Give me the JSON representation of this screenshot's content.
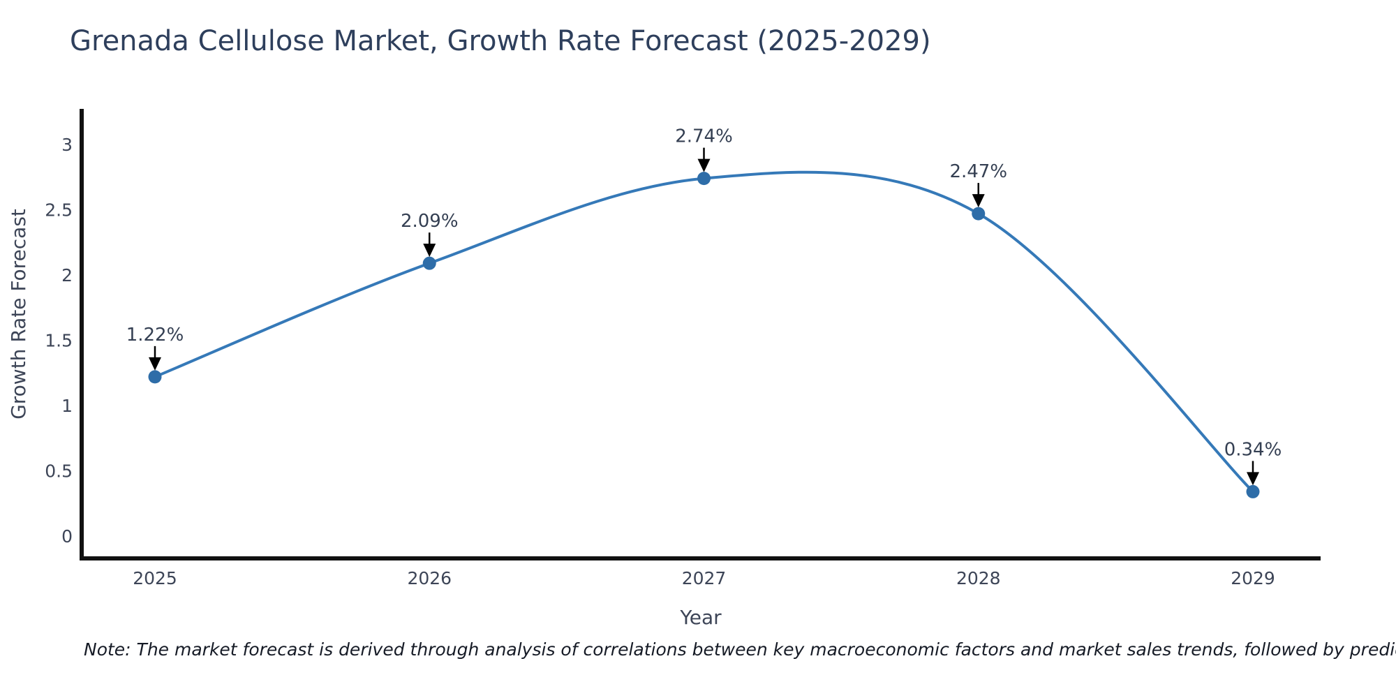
{
  "title": "Grenada Cellulose Market, Growth Rate Forecast (2025-2029)",
  "note": "Note: The market forecast is derived through analysis of correlations between key macroeconomic factors and market sales trends, followed by predictive modeling to project future sales",
  "chart_data": {
    "type": "line",
    "title": "Grenada Cellulose Market, Growth Rate Forecast (2025-2029)",
    "x": [
      2025,
      2026,
      2027,
      2028,
      2029
    ],
    "values": [
      1.22,
      2.09,
      2.74,
      2.47,
      0.34
    ],
    "point_labels": [
      "1.22%",
      "2.09%",
      "2.74%",
      "2.47%",
      "0.34%"
    ],
    "xticks": [
      "2025",
      "2026",
      "2027",
      "2028",
      "2029"
    ],
    "yticks": [
      "0",
      "0.5",
      "1",
      "1.5",
      "2",
      "2.5",
      "3"
    ],
    "xlabel": "Year",
    "ylabel": "Growth Rate Forecast",
    "ylim": [
      -0.17,
      3.28
    ],
    "grid": false,
    "legend": "none",
    "line_color": "#3579b8",
    "marker_color": "#2e6da8",
    "axis_color": "#111111",
    "annotation_arrow_color": "#000000",
    "curve_style": "smooth-spline"
  }
}
